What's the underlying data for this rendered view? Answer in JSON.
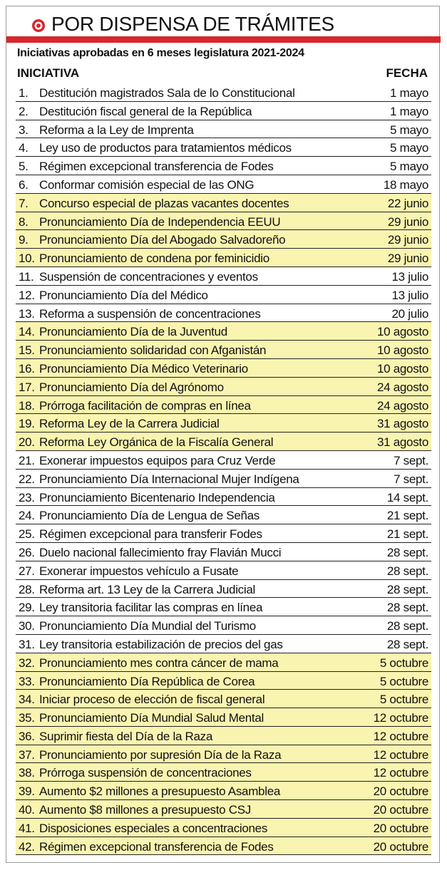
{
  "header": {
    "title": "POR DISPENSA DE TRÁMITES",
    "subtitle": "Iniciativas aprobadas en 6 meses legislatura 2021-2024",
    "col_initiative": "INICIATIVA",
    "col_date": "FECHA"
  },
  "table": {
    "rows": [
      {
        "number": "1.",
        "text": "Destitución magistrados Sala de lo Constitucional",
        "date": "1 mayo",
        "highlight": false
      },
      {
        "number": "2.",
        "text": "Destitución fiscal general de la República",
        "date": "1 mayo",
        "highlight": false
      },
      {
        "number": "3.",
        "text": "Reforma a la Ley de Imprenta",
        "date": "5 mayo",
        "highlight": false
      },
      {
        "number": "4.",
        "text": " Ley uso de productos para tratamientos médicos",
        "date": "5 mayo",
        "highlight": false
      },
      {
        "number": "5.",
        "text": "Régimen excepcional transferencia de Fodes",
        "date": "5 mayo",
        "highlight": false
      },
      {
        "number": "6.",
        "text": "Conformar comisión especial de las ONG",
        "date": "18 mayo",
        "highlight": false
      },
      {
        "number": "7.",
        "text": "Concurso especial de plazas vacantes docentes",
        "date": "22 junio",
        "highlight": true
      },
      {
        "number": "8.",
        "text": "Pronunciamiento Día de Independencia EEUU",
        "date": "29 junio",
        "highlight": true
      },
      {
        "number": "9.",
        "text": "Pronunciamiento Día del Abogado Salvadoreño",
        "date": "29 junio",
        "highlight": true
      },
      {
        "number": "10.",
        "text": "Pronunciamiento de condena por feminicidio",
        "date": "29 junio",
        "highlight": true
      },
      {
        "number": "11.",
        "text": "Suspensión de concentraciones y eventos",
        "date": "13 julio",
        "highlight": false
      },
      {
        "number": "12.",
        "text": "Pronunciamiento Día del Médico",
        "date": "13 julio",
        "highlight": false
      },
      {
        "number": "13.",
        "text": "Reforma a suspensión de concentraciones",
        "date": "20 julio",
        "highlight": false
      },
      {
        "number": "14.",
        "text": "Pronunciamiento Día de la Juventud",
        "date": "10 agosto",
        "highlight": true
      },
      {
        "number": "15.",
        "text": "Pronunciamiento solidaridad con Afganistán",
        "date": "10 agosto",
        "highlight": true
      },
      {
        "number": "16.",
        "text": "Pronunciamiento Día Médico Veterinario",
        "date": "10 agosto",
        "highlight": true
      },
      {
        "number": "17.",
        "text": "Pronunciamiento Día del Agrónomo",
        "date": "24 agosto",
        "highlight": true
      },
      {
        "number": "18.",
        "text": "Prórroga facilitación de compras en línea",
        "date": "24 agosto",
        "highlight": true
      },
      {
        "number": "19.",
        "text": "Reforma Ley de la Carrera Judicial",
        "date": "31 agosto",
        "highlight": true
      },
      {
        "number": "20.",
        "text": "Reforma Ley Orgánica de la Fiscalía General",
        "date": "31 agosto",
        "highlight": true
      },
      {
        "number": "21.",
        "text": "Exonerar impuestos equipos para Cruz Verde",
        "date": "7 sept.",
        "highlight": false
      },
      {
        "number": "22.",
        "text": "Pronunciamiento Día Internacional Mujer Indígena",
        "date": "7 sept.",
        "highlight": false
      },
      {
        "number": "23.",
        "text": "Pronunciamiento Bicentenario Independencia",
        "date": "14 sept.",
        "highlight": false
      },
      {
        "number": "24.",
        "text": "Pronunciamiento Día de Lengua de Señas",
        "date": "21 sept.",
        "highlight": false
      },
      {
        "number": "25.",
        "text": "Régimen excepcional para transferir Fodes",
        "date": "21 sept.",
        "highlight": false
      },
      {
        "number": "26.",
        "text": "Duelo nacional fallecimiento fray Flavián Mucci",
        "date": "28 sept.",
        "highlight": false
      },
      {
        "number": "27.",
        "text": "Exonerar impuestos vehículo a Fusate",
        "date": "28 sept.",
        "highlight": false
      },
      {
        "number": "28.",
        "text": "Reforma art. 13 Ley de la Carrera Judicial",
        "date": "28 sept.",
        "highlight": false
      },
      {
        "number": "29.",
        "text": "Ley transitoria facilitar las compras en línea",
        "date": "28 sept.",
        "highlight": false
      },
      {
        "number": "30.",
        "text": "Pronunciamiento Día Mundial del Turismo",
        "date": "28 sept.",
        "highlight": false
      },
      {
        "number": "31.",
        "text": "Ley transitoria estabilización de precios del gas",
        "date": "28 sept.",
        "highlight": false
      },
      {
        "number": "32.",
        "text": "Pronunciamiento mes contra cáncer de mama",
        "date": "5 octubre",
        "highlight": true
      },
      {
        "number": "33.",
        "text": "Pronunciamiento Día República de Corea",
        "date": "5 octubre",
        "highlight": true
      },
      {
        "number": "34.",
        "text": "Iniciar proceso de elección de fiscal general",
        "date": "5 octubre",
        "highlight": true
      },
      {
        "number": "35.",
        "text": "Pronunciamiento Día Mundial Salud Mental",
        "date": "12 octubre",
        "highlight": true
      },
      {
        "number": "36.",
        "text": "Suprimir fiesta del Día de la Raza",
        "date": "12 octubre",
        "highlight": true
      },
      {
        "number": "37.",
        "text": "Pronunciamiento por supresión Día de la Raza",
        "date": "12 octubre",
        "highlight": true
      },
      {
        "number": "38.",
        "text": "Prórroga suspensión de concentraciones",
        "date": "12 octubre",
        "highlight": true
      },
      {
        "number": "39.",
        "text": "Aumento $2 millones a presupuesto Asamblea",
        "date": "20 octubre",
        "highlight": true
      },
      {
        "number": "40.",
        "text": "Aumento $8 millones a presupuesto CSJ",
        "date": "20 octubre",
        "highlight": true
      },
      {
        "number": "41.",
        "text": "Disposiciones especiales a concentraciones",
        "date": "20 octubre",
        "highlight": true
      },
      {
        "number": "42.",
        "text": "Régimen excepcional transferencia de Fodes",
        "date": "20 octubre",
        "highlight": true
      }
    ]
  }
}
